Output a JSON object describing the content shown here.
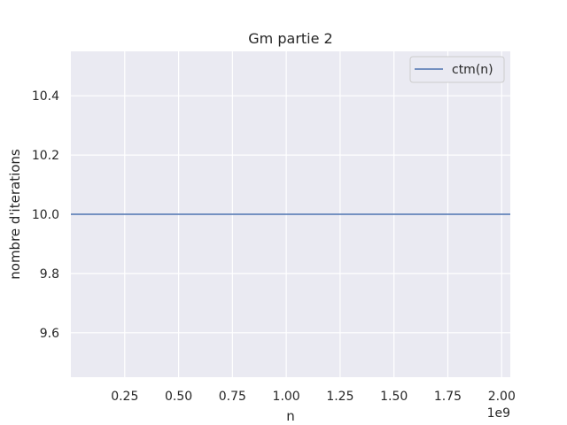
{
  "chart_data": {
    "type": "line",
    "title": "Gm partie 2",
    "xlabel": "n",
    "ylabel": "nombre d'iterations",
    "x_offset_label": "1e9",
    "x_scale": 1000000000,
    "xlim": [
      0,
      2040000000
    ],
    "ylim": [
      9.45,
      10.55
    ],
    "xticks": [
      250000000,
      500000000,
      750000000,
      1000000000,
      1250000000,
      1500000000,
      1750000000,
      2000000000
    ],
    "xtick_labels": [
      "0.25",
      "0.50",
      "0.75",
      "1.00",
      "1.25",
      "1.50",
      "1.75",
      "2.00"
    ],
    "yticks": [
      9.6,
      9.8,
      10.0,
      10.2,
      10.4
    ],
    "ytick_labels": [
      "9.6",
      "9.8",
      "10.0",
      "10.2",
      "10.4"
    ],
    "grid": true,
    "legend_position": "top-right",
    "series": [
      {
        "name": "ctm(n)",
        "color": "#4c72b0",
        "x": [
          0,
          2040000000
        ],
        "y": [
          10.0,
          10.0
        ]
      }
    ],
    "colors": {
      "plot_background": "#eaeaf2",
      "grid": "#ffffff"
    }
  }
}
